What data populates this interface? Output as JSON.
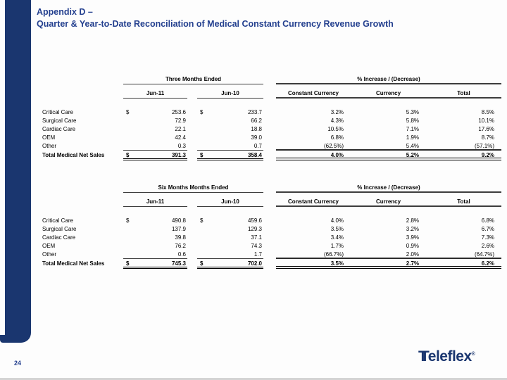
{
  "header": {
    "title_line1": "Appendix D –",
    "title_line2": "Quarter & Year-to-Date Reconciliation of Medical Constant Currency Revenue Growth"
  },
  "colors": {
    "navy_accent": "#1a366f",
    "title_blue": "#24408f",
    "table_line": "#3d3d3d"
  },
  "tables": [
    {
      "period_header": "Three Months Ended",
      "pct_header": "% Increase / (Decrease)",
      "columns": [
        "Jun-11",
        "Jun-10",
        "Constant Currency",
        "Currency",
        "Total"
      ],
      "rows": [
        {
          "label": "Critical Care",
          "usd1": "$",
          "jun11": "253.6",
          "usd2": "$",
          "jun10": "233.7",
          "constant_currency": "3.2%",
          "currency": "5.3%",
          "total": "8.5%"
        },
        {
          "label": "Surgical Care",
          "usd1": "",
          "jun11": "72.9",
          "usd2": "",
          "jun10": "66.2",
          "constant_currency": "4.3%",
          "currency": "5.8%",
          "total": "10.1%"
        },
        {
          "label": "Cardiac Care",
          "usd1": "",
          "jun11": "22.1",
          "usd2": "",
          "jun10": "18.8",
          "constant_currency": "10.5%",
          "currency": "7.1%",
          "total": "17.6%"
        },
        {
          "label": "OEM",
          "usd1": "",
          "jun11": "42.4",
          "usd2": "",
          "jun10": "39.0",
          "constant_currency": "6.8%",
          "currency": "1.9%",
          "total": "8.7%"
        },
        {
          "label": "Other",
          "usd1": "",
          "jun11": "0.3",
          "usd2": "",
          "jun10": "0.7",
          "constant_currency": "(62.5%)",
          "currency": "5.4%",
          "total": "(57.1%)"
        }
      ],
      "total_row": {
        "label": "Total Medical Net Sales",
        "usd1": "$",
        "jun11": "391.3",
        "usd2": "$",
        "jun10": "358.4",
        "constant_currency": "4.0%",
        "currency": "5.2%",
        "total": "9.2%"
      }
    },
    {
      "period_header": "Six Months Months Ended",
      "pct_header": "% Increase / (Decrease)",
      "columns": [
        "Jun-11",
        "Jun-10",
        "Constant Currency",
        "Currency",
        "Total"
      ],
      "rows": [
        {
          "label": "Critical Care",
          "usd1": "$",
          "jun11": "490.8",
          "usd2": "$",
          "jun10": "459.6",
          "constant_currency": "4.0%",
          "currency": "2.8%",
          "total": "6.8%"
        },
        {
          "label": "Surgical Care",
          "usd1": "",
          "jun11": "137.9",
          "usd2": "",
          "jun10": "129.3",
          "constant_currency": "3.5%",
          "currency": "3.2%",
          "total": "6.7%"
        },
        {
          "label": "Cardiac Care",
          "usd1": "",
          "jun11": "39.8",
          "usd2": "",
          "jun10": "37.1",
          "constant_currency": "3.4%",
          "currency": "3.9%",
          "total": "7.3%"
        },
        {
          "label": "OEM",
          "usd1": "",
          "jun11": "76.2",
          "usd2": "",
          "jun10": "74.3",
          "constant_currency": "1.7%",
          "currency": "0.9%",
          "total": "2.6%"
        },
        {
          "label": "Other",
          "usd1": "",
          "jun11": "0.6",
          "usd2": "",
          "jun10": "1.7",
          "constant_currency": "(66.7%)",
          "currency": "2.0%",
          "total": "(64.7%)"
        }
      ],
      "total_row": {
        "label": "Total Medical Net Sales",
        "usd1": "$",
        "jun11": "745.3",
        "usd2": "$",
        "jun10": "702.0",
        "constant_currency": "3.5%",
        "currency": "2.7%",
        "total": "6.2%"
      }
    }
  ],
  "footer": {
    "page_number": "24",
    "logo_t": "T",
    "logo_rest": "eleflex",
    "logo_reg": "®"
  }
}
